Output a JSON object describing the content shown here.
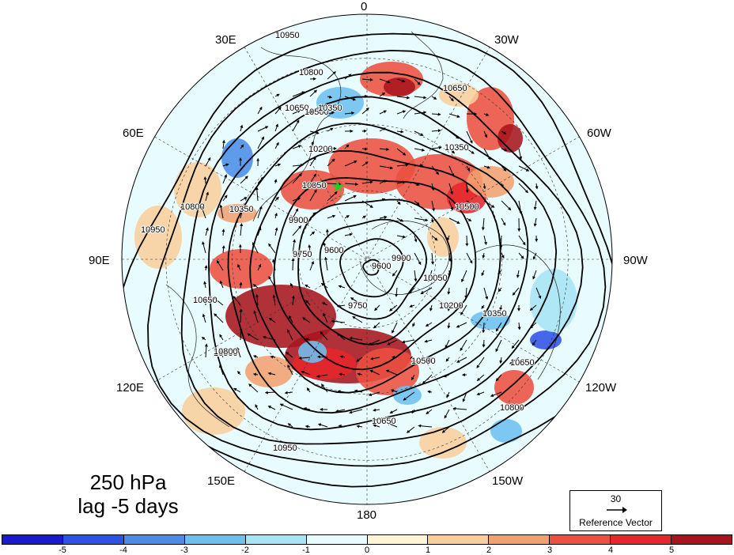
{
  "panel": {
    "level": "250 hPa",
    "lag": "lag -5 days"
  },
  "longitude_labels": [
    {
      "name": "lon-0",
      "text": "0"
    },
    {
      "name": "lon-30w",
      "text": "30W"
    },
    {
      "name": "lon-60w",
      "text": "60W"
    },
    {
      "name": "lon-90w",
      "text": "90W"
    },
    {
      "name": "lon-120w",
      "text": "120W"
    },
    {
      "name": "lon-150w",
      "text": "150W"
    },
    {
      "name": "lon-180",
      "text": "180"
    },
    {
      "name": "lon-150e",
      "text": "150E"
    },
    {
      "name": "lon-120e",
      "text": "120E"
    },
    {
      "name": "lon-90e",
      "text": "90E"
    },
    {
      "name": "lon-60e",
      "text": "60E"
    },
    {
      "name": "lon-30e",
      "text": "30E"
    }
  ],
  "contour_labels": [
    "10950",
    "10800",
    "10650",
    "10500",
    "10350",
    "10200",
    "10050",
    "9900",
    "9750",
    "9600",
    "10950",
    "10800",
    "10650",
    "10500",
    "10350",
    "10800",
    "10650",
    "10350",
    "10500",
    "10650",
    "10800",
    "10950",
    "10650",
    "10500",
    "10350",
    "10200",
    "10050",
    "9900",
    "9750",
    "9600"
  ],
  "reference_vector": {
    "value": "30",
    "label": "Reference Vector"
  },
  "colorbar": {
    "ticks": [
      "-5",
      "-4",
      "-3",
      "-2",
      "-1",
      "0",
      "1",
      "2",
      "3",
      "4",
      "5"
    ],
    "colors": [
      "#1a1acc",
      "#2f52e6",
      "#4a8de8",
      "#6cc0f0",
      "#a6e4f6",
      "#e8fbff",
      "#fff4d6",
      "#f8cf9c",
      "#f3a06f",
      "#ec5040",
      "#e6262a",
      "#a8141e"
    ]
  },
  "colors": {
    "marker": "#22cc22",
    "coast": "#222222",
    "contour": "#000000"
  }
}
